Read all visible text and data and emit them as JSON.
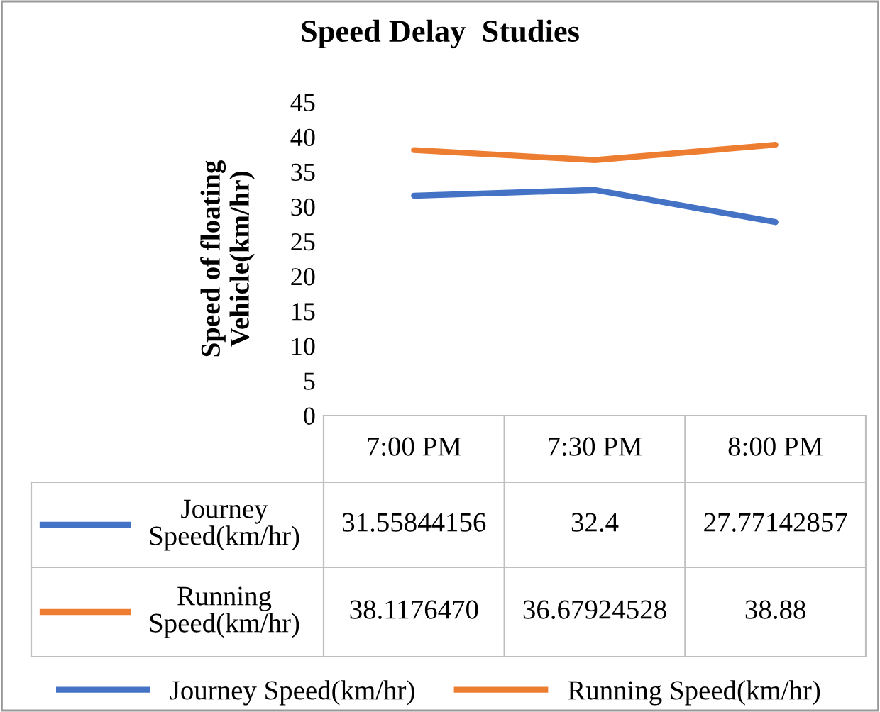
{
  "chart_data": {
    "type": "line",
    "title": "Speed Delay  Studies",
    "ylabel": "Speed of floating\nVehicle(km/hr)",
    "categories": [
      "7:00 PM",
      "7:30 PM",
      "8:00 PM"
    ],
    "series": [
      {
        "name": "Journey Speed(km/hr)",
        "color": "#4472c4",
        "values": [
          31.55844156,
          32.4,
          27.77142857
        ],
        "value_labels": [
          "31.55844156",
          "32.4",
          "27.77142857"
        ]
      },
      {
        "name": "Running Speed(km/hr)",
        "color": "#ed7d31",
        "values": [
          38.117647,
          36.67924528,
          38.88
        ],
        "value_labels": [
          "38.1176470",
          "36.67924528",
          "38.88"
        ]
      }
    ],
    "ylim": [
      0,
      45
    ],
    "yticks": [
      0,
      5,
      10,
      15,
      20,
      25,
      30,
      35,
      40,
      45
    ],
    "grid": false,
    "legend": "bottom"
  }
}
